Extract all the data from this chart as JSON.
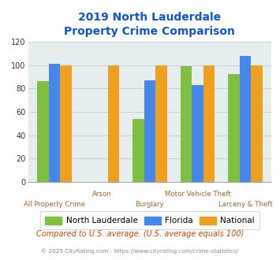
{
  "title_line1": "2019 North Lauderdale",
  "title_line2": "Property Crime Comparison",
  "categories": [
    "All Property Crime",
    "Arson",
    "Burglary",
    "Motor Vehicle Theft",
    "Larceny & Theft"
  ],
  "north_lauderdale": [
    86,
    0,
    54,
    99,
    92
  ],
  "florida": [
    101,
    0,
    87,
    83,
    108
  ],
  "national": [
    100,
    100,
    100,
    100,
    100
  ],
  "color_nl": "#80C040",
  "color_fl": "#4488EE",
  "color_nat": "#F0A020",
  "ylim": [
    0,
    120
  ],
  "yticks": [
    0,
    20,
    40,
    60,
    80,
    100,
    120
  ],
  "bg_color": "#E6EEF0",
  "title_color": "#1155CC",
  "xlabel_color": "#996633",
  "legend_labels": [
    "North Lauderdale",
    "Florida",
    "National"
  ],
  "footnote1": "Compared to U.S. average. (U.S. average equals 100)",
  "footnote2": "© 2025 CityRating.com - https://www.cityrating.com/crime-statistics/",
  "footnote1_color": "#CC4400",
  "footnote2_color": "#888888",
  "cat_labels_row1": [
    "",
    "Arson",
    "",
    "Motor Vehicle Theft",
    ""
  ],
  "cat_labels_row2": [
    "All Property Crime",
    "",
    "Burglary",
    "",
    "Larceny & Theft"
  ]
}
